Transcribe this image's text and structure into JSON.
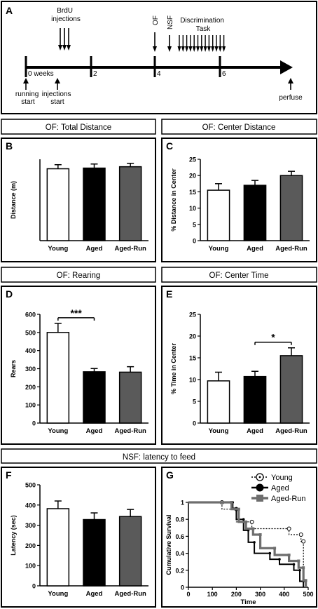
{
  "timeline": {
    "panel_label": "A",
    "injections_label": [
      "BrdU",
      "injections"
    ],
    "of_label": "OF",
    "nsf_label": "NSF",
    "task_label": [
      "Discrimination",
      "Task"
    ],
    "tick_labels": [
      "0 weeks",
      "2",
      "4",
      "6"
    ],
    "running_label": [
      "running",
      "start"
    ],
    "inj_start_label": [
      "injections",
      "start"
    ],
    "perfuse_label": "perfuse"
  },
  "headers": {
    "of_total": "OF: Total Distance",
    "of_center_dist": "OF: Center Distance",
    "of_rearing": "OF: Rearing",
    "of_center_time": "OF: Center Time",
    "nsf": "NSF: latency to feed"
  },
  "colors": {
    "young": "#ffffff",
    "aged": "#000000",
    "aged_run": "#5a5a5a",
    "border": "#000000"
  },
  "chart_data": [
    {
      "id": "B",
      "type": "bar",
      "panel_label": "B",
      "categories": [
        "Young",
        "Aged",
        "Aged-Run"
      ],
      "values": [
        106,
        107,
        109
      ],
      "errors": [
        6,
        6,
        5
      ],
      "ylabel": "Distance (m)",
      "ylim": [
        0,
        120
      ]
    },
    {
      "id": "C",
      "type": "bar",
      "panel_label": "C",
      "categories": [
        "Young",
        "Aged",
        "Aged-Run"
      ],
      "values": [
        15.5,
        17,
        20
      ],
      "errors": [
        2,
        1.5,
        1.3
      ],
      "ylabel": "% Distance in Center",
      "ylim": [
        0,
        25
      ],
      "yticks": [
        0,
        5,
        10,
        15,
        20,
        25
      ]
    },
    {
      "id": "D",
      "type": "bar",
      "panel_label": "D",
      "categories": [
        "Young",
        "Aged",
        "Aged-Run"
      ],
      "values": [
        500,
        283,
        281
      ],
      "errors": [
        50,
        18,
        30
      ],
      "ylabel": "Rears",
      "ylim": [
        0,
        600
      ],
      "yticks": [
        0,
        100,
        200,
        300,
        400,
        500,
        600
      ],
      "significance": {
        "from": 0,
        "to": 1,
        "label": "***"
      }
    },
    {
      "id": "E",
      "type": "bar",
      "panel_label": "E",
      "categories": [
        "Young",
        "Aged",
        "Aged-Run"
      ],
      "values": [
        9.7,
        10.7,
        15.5
      ],
      "errors": [
        2,
        1.2,
        1.8
      ],
      "ylabel": "% Time in Center",
      "ylim": [
        0,
        25
      ],
      "yticks": [
        0,
        5,
        10,
        15,
        20,
        25
      ],
      "significance": {
        "from": 1,
        "to": 2,
        "label": "*"
      }
    },
    {
      "id": "F",
      "type": "bar",
      "panel_label": "F",
      "categories": [
        "Young",
        "Aged",
        "Aged-Run"
      ],
      "values": [
        382,
        328,
        343
      ],
      "errors": [
        38,
        33,
        35
      ],
      "ylabel": "Latency (sec)",
      "ylim": [
        0,
        500
      ],
      "yticks": [
        0,
        100,
        200,
        300,
        400,
        500
      ]
    },
    {
      "id": "G",
      "type": "line",
      "panel_label": "G",
      "xlabel": "Time",
      "ylabel": "Cumulative Survival",
      "xlim": [
        0,
        500
      ],
      "ylim": [
        0,
        1.0
      ],
      "xticks": [
        0,
        100,
        200,
        300,
        400,
        500
      ],
      "yticks": [
        0,
        0.2,
        0.4,
        0.6,
        0.8,
        1.0
      ],
      "series": [
        {
          "name": "Young",
          "points": [
            [
              0,
              1.0
            ],
            [
              140,
              1.0
            ],
            [
              140,
              0.92
            ],
            [
              200,
              0.92
            ],
            [
              200,
              0.77
            ],
            [
              265,
              0.77
            ],
            [
              265,
              0.69
            ],
            [
              420,
              0.69
            ],
            [
              420,
              0.62
            ],
            [
              470,
              0.62
            ],
            [
              470,
              0.54
            ],
            [
              480,
              0.54
            ],
            [
              480,
              0.0
            ]
          ]
        },
        {
          "name": "Aged",
          "points": [
            [
              0,
              1.0
            ],
            [
              185,
              1.0
            ],
            [
              185,
              0.93
            ],
            [
              200,
              0.93
            ],
            [
              200,
              0.8
            ],
            [
              230,
              0.8
            ],
            [
              230,
              0.67
            ],
            [
              250,
              0.67
            ],
            [
              250,
              0.53
            ],
            [
              275,
              0.53
            ],
            [
              275,
              0.4
            ],
            [
              340,
              0.4
            ],
            [
              340,
              0.33
            ],
            [
              380,
              0.33
            ],
            [
              380,
              0.27
            ],
            [
              440,
              0.27
            ],
            [
              440,
              0.2
            ],
            [
              465,
              0.2
            ],
            [
              465,
              0.07
            ],
            [
              480,
              0.07
            ],
            [
              480,
              0.0
            ]
          ]
        },
        {
          "name": "Aged-Run",
          "points": [
            [
              0,
              1.0
            ],
            [
              180,
              1.0
            ],
            [
              180,
              0.92
            ],
            [
              210,
              0.92
            ],
            [
              210,
              0.77
            ],
            [
              240,
              0.77
            ],
            [
              240,
              0.69
            ],
            [
              270,
              0.69
            ],
            [
              270,
              0.62
            ],
            [
              300,
              0.62
            ],
            [
              300,
              0.46
            ],
            [
              360,
              0.46
            ],
            [
              360,
              0.38
            ],
            [
              420,
              0.38
            ],
            [
              420,
              0.31
            ],
            [
              460,
              0.31
            ],
            [
              460,
              0.23
            ],
            [
              480,
              0.23
            ],
            [
              480,
              0.08
            ],
            [
              490,
              0.08
            ],
            [
              490,
              0.0
            ]
          ]
        }
      ]
    }
  ]
}
